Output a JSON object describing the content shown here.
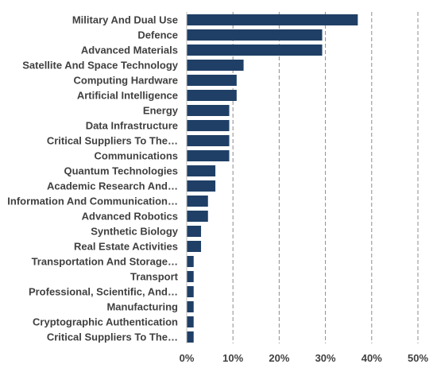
{
  "chart_data": {
    "type": "bar",
    "orientation": "horizontal",
    "categories": [
      "Military And Dual Use",
      "Defence",
      "Advanced Materials",
      "Satellite And Space Technology",
      "Computing Hardware",
      "Artificial Intelligence",
      "Energy",
      "Data Infrastructure",
      "Critical Suppliers To The…",
      "Communications",
      "Quantum Technologies",
      "Academic Research And…",
      "Information And Communication…",
      "Advanced Robotics",
      "Synthetic Biology",
      "Real Estate Activities",
      "Transportation And Storage…",
      "Transport",
      "Professional, Scientific, And…",
      "Manufacturing",
      "Cryptographic Authentication",
      "Critical Suppliers To The…"
    ],
    "values": [
      37.0,
      29.3,
      29.3,
      12.3,
      10.8,
      10.8,
      9.2,
      9.2,
      9.2,
      9.2,
      6.2,
      6.2,
      4.6,
      4.6,
      3.1,
      3.1,
      1.5,
      1.5,
      1.5,
      1.5,
      1.5,
      1.5
    ],
    "xlim": [
      0,
      50
    ],
    "xticks": [
      0,
      10,
      20,
      30,
      40,
      50
    ],
    "xtick_labels": [
      "0%",
      "10%",
      "20%",
      "30%",
      "40%",
      "50%"
    ],
    "grid": "vertical dashed",
    "bar_color": "#1f3f66",
    "title": "",
    "xlabel": "",
    "ylabel": ""
  }
}
